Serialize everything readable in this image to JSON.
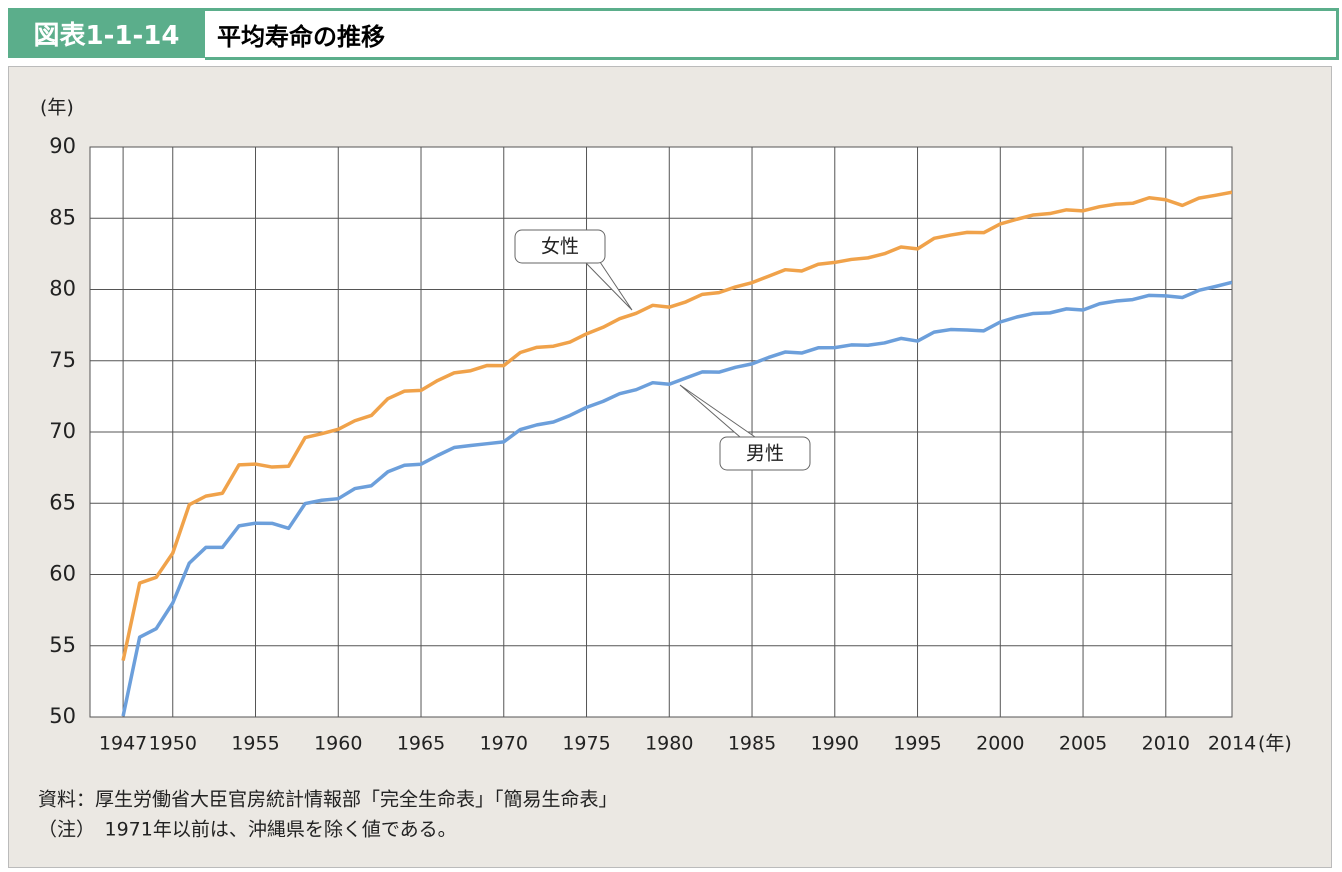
{
  "figure_id": "図表1-1-14",
  "chart_data": {
    "type": "line",
    "title": "平均寿命の推移",
    "y_label": "(年)",
    "x_label": "(年)",
    "x": [
      1947,
      1948,
      1949,
      1950,
      1951,
      1952,
      1953,
      1954,
      1955,
      1956,
      1957,
      1958,
      1959,
      1960,
      1961,
      1962,
      1963,
      1964,
      1965,
      1966,
      1967,
      1968,
      1969,
      1970,
      1971,
      1972,
      1973,
      1974,
      1975,
      1976,
      1977,
      1978,
      1979,
      1980,
      1981,
      1982,
      1983,
      1984,
      1985,
      1986,
      1987,
      1988,
      1989,
      1990,
      1991,
      1992,
      1993,
      1994,
      1995,
      1996,
      1997,
      1998,
      1999,
      2000,
      2001,
      2002,
      2003,
      2004,
      2005,
      2006,
      2007,
      2008,
      2009,
      2010,
      2011,
      2012,
      2013,
      2014
    ],
    "series": [
      {
        "name": "女性",
        "color": "#f0a24a",
        "values": [
          53.96,
          59.4,
          59.8,
          61.5,
          64.9,
          65.5,
          65.7,
          67.69,
          67.75,
          67.54,
          67.6,
          69.61,
          69.88,
          70.19,
          70.79,
          71.16,
          72.34,
          72.87,
          72.92,
          73.61,
          74.15,
          74.3,
          74.67,
          74.66,
          75.58,
          75.94,
          76.02,
          76.31,
          76.89,
          77.35,
          77.95,
          78.33,
          78.89,
          78.76,
          79.13,
          79.66,
          79.78,
          80.18,
          80.48,
          80.93,
          81.39,
          81.3,
          81.77,
          81.9,
          82.11,
          82.22,
          82.51,
          82.98,
          82.85,
          83.59,
          83.82,
          84.01,
          83.99,
          84.6,
          84.93,
          85.23,
          85.33,
          85.59,
          85.52,
          85.81,
          85.99,
          86.05,
          86.44,
          86.3,
          85.9,
          86.41,
          86.61,
          86.83
        ]
      },
      {
        "name": "男性",
        "color": "#6c9fdb",
        "values": [
          50.06,
          55.6,
          56.2,
          58.0,
          60.8,
          61.9,
          61.9,
          63.41,
          63.6,
          63.59,
          63.24,
          64.98,
          65.21,
          65.32,
          66.03,
          66.23,
          67.21,
          67.67,
          67.74,
          68.35,
          68.91,
          69.05,
          69.18,
          69.31,
          70.17,
          70.5,
          70.7,
          71.16,
          71.73,
          72.15,
          72.69,
          72.97,
          73.46,
          73.35,
          73.79,
          74.22,
          74.2,
          74.54,
          74.78,
          75.23,
          75.61,
          75.54,
          75.91,
          75.92,
          76.11,
          76.09,
          76.25,
          76.57,
          76.38,
          77.01,
          77.19,
          77.16,
          77.1,
          77.72,
          78.07,
          78.32,
          78.36,
          78.64,
          78.56,
          79.0,
          79.19,
          79.29,
          79.59,
          79.55,
          79.44,
          79.94,
          80.21,
          80.5
        ]
      }
    ],
    "xlim": [
      1945,
      2014
    ],
    "xticks": [
      1947,
      1950,
      1955,
      1960,
      1965,
      1970,
      1975,
      1980,
      1985,
      1990,
      1995,
      2000,
      2005,
      2010,
      2014
    ],
    "ylim": [
      50,
      90
    ],
    "yticks": [
      50,
      55,
      60,
      65,
      70,
      75,
      80,
      85,
      90
    ],
    "grid": true,
    "notes": [
      "資料：厚生労働省大臣官房統計情報部「完全生命表」「簡易生命表」",
      "（注）　1971年以前は、沖縄県を除く値である。"
    ]
  }
}
